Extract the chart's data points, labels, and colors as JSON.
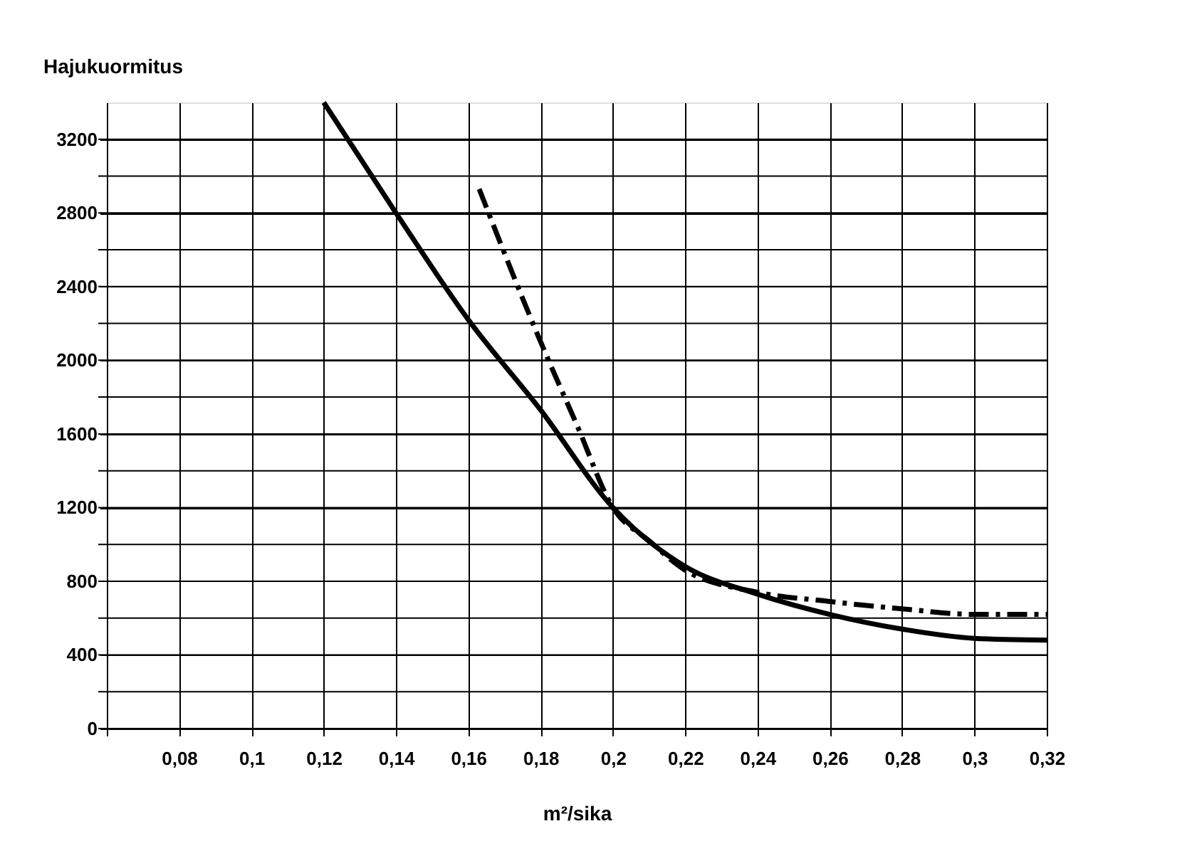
{
  "chart_data": {
    "type": "line",
    "ylabel": "Hajukuormitus",
    "xlabel": "m²/sika",
    "xlim": [
      0.06,
      0.32
    ],
    "ylim": [
      0,
      3400
    ],
    "xticks": [
      {
        "value": 0.06,
        "label": null
      },
      {
        "value": 0.08,
        "label": "0,08"
      },
      {
        "value": 0.1,
        "label": "0,1"
      },
      {
        "value": 0.12,
        "label": "0,12"
      },
      {
        "value": 0.14,
        "label": "0,14"
      },
      {
        "value": 0.16,
        "label": "0,16"
      },
      {
        "value": 0.18,
        "label": "0,18"
      },
      {
        "value": 0.2,
        "label": "0,2"
      },
      {
        "value": 0.22,
        "label": "0,22"
      },
      {
        "value": 0.24,
        "label": "0,24"
      },
      {
        "value": 0.26,
        "label": "0,26"
      },
      {
        "value": 0.28,
        "label": "0,28"
      },
      {
        "value": 0.3,
        "label": "0,3"
      },
      {
        "value": 0.32,
        "label": "0,32"
      }
    ],
    "yticks": [
      0,
      {
        "value": 200,
        "label": null
      },
      400,
      {
        "value": 600,
        "label": null
      },
      800,
      {
        "value": 1000,
        "label": null
      },
      1200,
      {
        "value": 1400,
        "label": null
      },
      1600,
      {
        "value": 1800,
        "label": null
      },
      2000,
      {
        "value": 2200,
        "label": null
      },
      2400,
      {
        "value": 2600,
        "label": null
      },
      2800,
      {
        "value": 3000,
        "label": null
      },
      3200
    ],
    "grid": true,
    "marker": "none",
    "series": [
      {
        "color": "#000000",
        "line_style": "solid",
        "x": [
          0.12,
          0.14,
          0.16,
          0.18,
          0.2,
          0.22,
          0.24,
          0.26,
          0.28,
          0.3,
          0.32
        ],
        "values": [
          3400,
          2800,
          2220,
          1730,
          1200,
          880,
          730,
          620,
          540,
          490,
          480
        ]
      },
      {
        "color": "#000000",
        "line_style": "dashed",
        "x": [
          0.163,
          0.18,
          0.19,
          0.2,
          0.21,
          0.22,
          0.24,
          0.26,
          0.28,
          0.3,
          0.32
        ],
        "values": [
          2930,
          2100,
          1650,
          1200,
          1020,
          860,
          740,
          690,
          650,
          620,
          620
        ]
      }
    ]
  }
}
